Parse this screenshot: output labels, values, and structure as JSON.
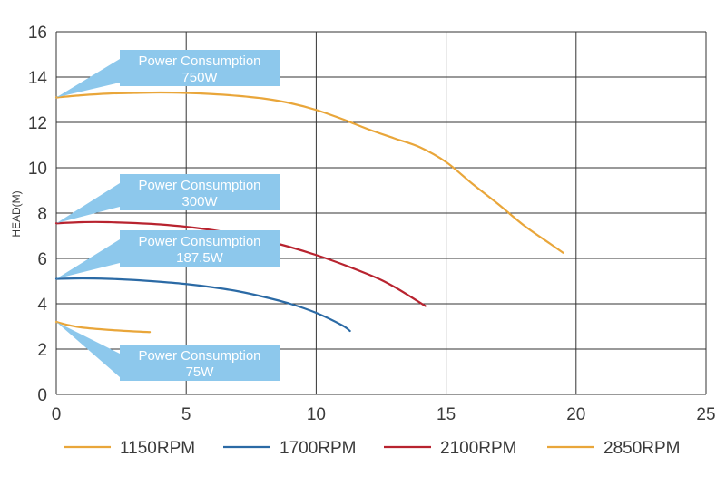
{
  "chart_data": {
    "type": "line",
    "ylabel": "HEAD(M)",
    "xlabel": "",
    "xlim": [
      0,
      25
    ],
    "ylim": [
      0,
      16
    ],
    "xticks": [
      0,
      5,
      10,
      15,
      20,
      25
    ],
    "yticks": [
      0,
      2,
      4,
      6,
      8,
      10,
      12,
      14,
      16
    ],
    "grid": true,
    "legend_position": "bottom",
    "series": [
      {
        "name": "1150RPM",
        "color": "#e9a63a",
        "x": [
          0,
          0.5,
          1,
          2,
          3,
          3.6
        ],
        "y": [
          3.2,
          3.05,
          2.95,
          2.85,
          2.78,
          2.75
        ]
      },
      {
        "name": "1700RPM",
        "color": "#2b6aa5",
        "x": [
          0,
          1,
          2,
          3,
          4,
          5,
          6,
          7,
          8,
          9,
          10,
          11,
          11.3
        ],
        "y": [
          5.1,
          5.12,
          5.1,
          5.05,
          4.97,
          4.87,
          4.73,
          4.55,
          4.3,
          4.0,
          3.6,
          3.05,
          2.8
        ]
      },
      {
        "name": "2100RPM",
        "color": "#b8232f",
        "x": [
          0,
          1,
          2,
          4,
          6,
          8,
          10,
          12,
          13,
          14.2
        ],
        "y": [
          7.55,
          7.6,
          7.6,
          7.5,
          7.25,
          6.8,
          6.15,
          5.3,
          4.75,
          3.9
        ]
      },
      {
        "name": "2850RPM",
        "color": "#e9a63a",
        "x": [
          0,
          1,
          2,
          3,
          4,
          5,
          6,
          7,
          8,
          9,
          10,
          11,
          12,
          13,
          14,
          15,
          16,
          17,
          18,
          19,
          19.5
        ],
        "y": [
          13.1,
          13.2,
          13.27,
          13.3,
          13.32,
          13.3,
          13.25,
          13.17,
          13.05,
          12.85,
          12.55,
          12.15,
          11.7,
          11.3,
          10.9,
          10.25,
          9.3,
          8.4,
          7.45,
          6.65,
          6.25
        ]
      }
    ],
    "annotations": [
      {
        "line1": "Power Consumption",
        "line2": "750W",
        "color": "#8dc8ec",
        "anchor": [
          0,
          13.1
        ]
      },
      {
        "line1": "Power Consumption",
        "line2": "300W",
        "color": "#8dc8ec",
        "anchor": [
          0,
          7.55
        ]
      },
      {
        "line1": "Power Consumption",
        "line2": "187.5W",
        "color": "#8dc8ec",
        "anchor": [
          0,
          5.1
        ]
      },
      {
        "line1": "Power Consumption",
        "line2": "75W",
        "color": "#8dc8ec",
        "anchor": [
          0,
          3.2
        ]
      }
    ]
  }
}
